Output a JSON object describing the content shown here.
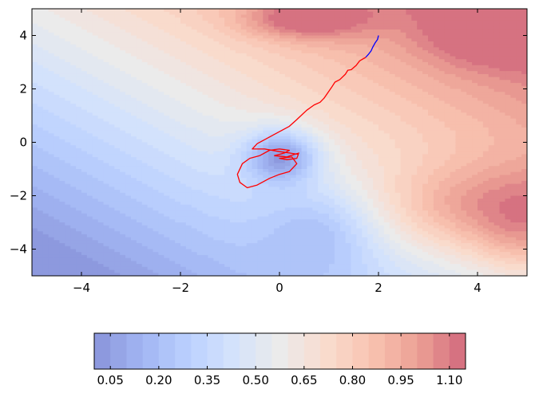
{
  "chart_data": {
    "type": "contourf",
    "title": "",
    "xlabel": "",
    "ylabel": "",
    "xlim": [
      -5,
      5
    ],
    "ylim": [
      -5,
      5
    ],
    "x_ticks": [
      -4,
      -2,
      0,
      2,
      4
    ],
    "x_tick_labels": [
      "−4",
      "−2",
      "0",
      "2",
      "4"
    ],
    "y_ticks": [
      -4,
      -2,
      0,
      2,
      4
    ],
    "y_tick_labels": [
      "−4",
      "−2",
      "0",
      "2",
      "4"
    ],
    "grid": false,
    "colormap": "coolwarm",
    "colorbar": {
      "orientation": "horizontal",
      "placement": "bottom",
      "range": [
        0.0,
        1.15
      ],
      "levels": 23,
      "tick_values": [
        0.05,
        0.2,
        0.35,
        0.5,
        0.65,
        0.8,
        0.95,
        1.1
      ],
      "tick_labels": [
        "0.05",
        "0.20",
        "0.35",
        "0.50",
        "0.65",
        "0.80",
        "0.95",
        "1.10"
      ]
    },
    "paths": [
      {
        "color": "#0000ff",
        "points": [
          [
            2.0,
            4.0
          ],
          [
            1.98,
            3.85
          ],
          [
            1.93,
            3.72
          ],
          [
            1.88,
            3.55
          ],
          [
            1.85,
            3.42
          ],
          [
            1.8,
            3.3
          ],
          [
            1.74,
            3.18
          ]
        ]
      },
      {
        "color": "#ff0000",
        "points": [
          [
            1.74,
            3.18
          ],
          [
            1.62,
            3.05
          ],
          [
            1.55,
            2.88
          ],
          [
            1.45,
            2.72
          ],
          [
            1.38,
            2.7
          ],
          [
            1.33,
            2.55
          ],
          [
            1.22,
            2.35
          ],
          [
            1.12,
            2.25
          ],
          [
            1.05,
            2.05
          ],
          [
            0.9,
            1.65
          ],
          [
            0.82,
            1.5
          ],
          [
            0.7,
            1.4
          ],
          [
            0.55,
            1.2
          ],
          [
            0.35,
            0.85
          ],
          [
            0.2,
            0.6
          ],
          [
            0.05,
            0.45
          ],
          [
            -0.1,
            0.3
          ],
          [
            -0.3,
            0.1
          ],
          [
            -0.45,
            -0.05
          ],
          [
            -0.55,
            -0.25
          ],
          [
            -0.3,
            -0.25
          ],
          [
            0.0,
            -0.35
          ],
          [
            0.2,
            -0.4
          ],
          [
            0.38,
            -0.45
          ],
          [
            0.35,
            -0.6
          ],
          [
            0.15,
            -0.65
          ],
          [
            0.0,
            -0.6
          ],
          [
            0.25,
            -0.55
          ],
          [
            0.35,
            -0.8
          ],
          [
            0.2,
            -1.1
          ],
          [
            0.0,
            -1.2
          ],
          [
            -0.2,
            -1.35
          ],
          [
            -0.45,
            -1.6
          ],
          [
            -0.65,
            -1.7
          ],
          [
            -0.8,
            -1.5
          ],
          [
            -0.85,
            -1.2
          ],
          [
            -0.75,
            -0.8
          ],
          [
            -0.6,
            -0.6
          ],
          [
            -0.4,
            -0.5
          ],
          [
            -0.2,
            -0.3
          ],
          [
            0.0,
            -0.25
          ],
          [
            0.2,
            -0.3
          ],
          [
            0.1,
            -0.4
          ],
          [
            -0.1,
            -0.5
          ],
          [
            0.15,
            -0.55
          ],
          [
            0.3,
            -0.45
          ],
          [
            0.4,
            -0.4
          ]
        ]
      }
    ]
  }
}
